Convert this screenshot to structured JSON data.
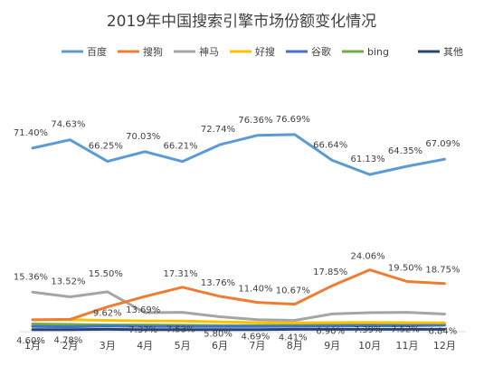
{
  "chart_data": {
    "type": "line",
    "title": "2019年中国搜索引擎市场份额变化情况",
    "categories": [
      "1月",
      "2月",
      "3月",
      "4月",
      "5月",
      "6月",
      "7月",
      "8月",
      "9月",
      "10月",
      "11月",
      "12月"
    ],
    "ylim": [
      0,
      90
    ],
    "grid": false,
    "legend_position": "top",
    "series": [
      {
        "name": "百度",
        "color": "#5B9BD5",
        "values": [
          71.4,
          74.63,
          66.25,
          70.03,
          66.21,
          72.74,
          76.36,
          76.69,
          66.64,
          61.13,
          64.35,
          67.09
        ],
        "labels": [
          "71.40%",
          "74.63%",
          "66.25%",
          "70.03%",
          "66.21%",
          "72.74%",
          "76.36%",
          "76.69%",
          "66.64%",
          "61.13%",
          "64.35%",
          "67.09%"
        ]
      },
      {
        "name": "搜狗",
        "color": "#ED7D31",
        "values": [
          4.6,
          4.78,
          9.62,
          13.69,
          17.31,
          13.76,
          11.4,
          10.67,
          17.85,
          24.06,
          19.5,
          18.75
        ],
        "labels": [
          "4.60%",
          "4.78%",
          "9.62%",
          "13.69%",
          "17.31%",
          "13.76%",
          "11.40%",
          "10.67%",
          "17.85%",
          "24.06%",
          "19.50%",
          "18.75%"
        ]
      },
      {
        "name": "神马",
        "color": "#A5A5A5",
        "values": [
          15.36,
          13.52,
          15.5,
          7.37,
          7.53,
          5.8,
          4.69,
          4.41,
          6.9,
          7.39,
          7.52,
          6.84
        ],
        "labels": [
          "15.36%",
          "13.52%",
          "15.50%",
          "7.37%",
          "7.53%",
          "5.80%",
          "4.69%",
          "4.41%",
          "6.90%",
          "7.39%",
          "7.52%",
          "6.84%"
        ]
      },
      {
        "name": "好搜",
        "color": "#FFC000",
        "values": [
          4.6,
          4.6,
          4.4,
          4.2,
          4.1,
          3.8,
          3.5,
          3.4,
          3.5,
          3.6,
          3.5,
          3.4
        ]
      },
      {
        "name": "谷歌",
        "color": "#4472C4",
        "values": [
          2.0,
          1.9,
          2.2,
          2.0,
          2.0,
          2.0,
          2.0,
          2.1,
          2.2,
          2.3,
          2.3,
          2.5
        ]
      },
      {
        "name": "bing",
        "color": "#70AD47",
        "values": [
          3.0,
          2.8,
          2.6,
          2.6,
          2.5,
          2.4,
          2.4,
          2.5,
          2.7,
          2.8,
          2.8,
          2.9
        ]
      },
      {
        "name": "其他",
        "color": "#264478",
        "values": [
          0.8,
          0.8,
          0.9,
          0.8,
          0.8,
          0.8,
          0.8,
          0.9,
          0.9,
          0.9,
          0.9,
          0.9
        ]
      }
    ]
  }
}
